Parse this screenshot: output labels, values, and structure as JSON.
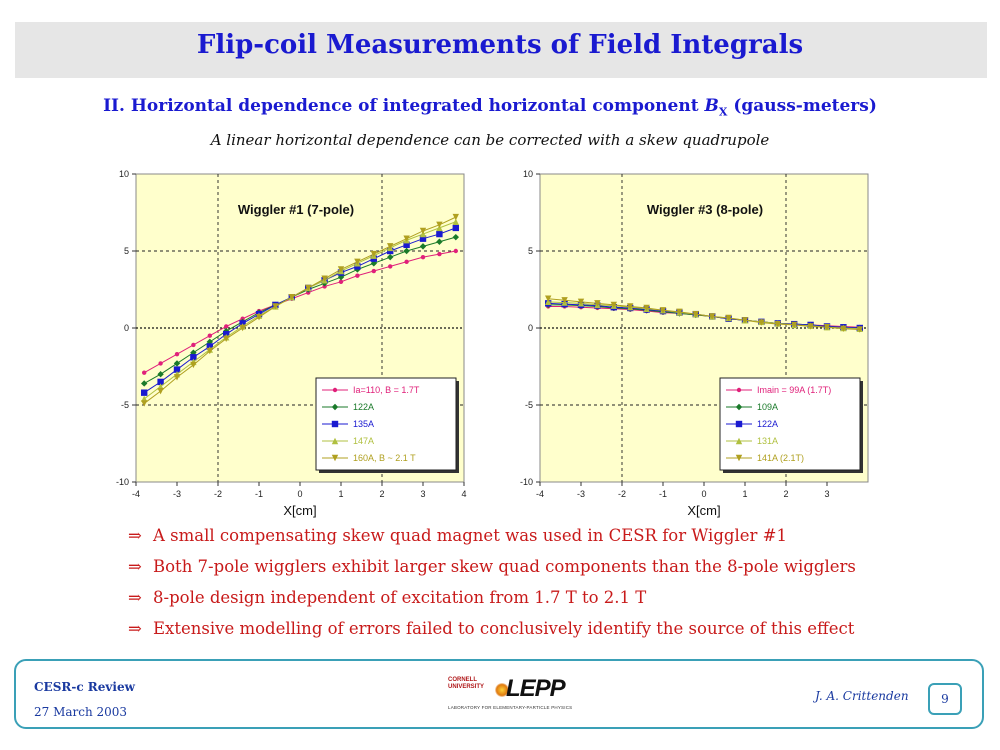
{
  "slide": {
    "title": "Flip-coil Measurements of Field Integrals",
    "subtitle_pre": "II. Horizontal dependence of integrated horizontal component ",
    "subtitle_var": "B",
    "subtitle_sub": "X",
    "subtitle_post": " (gauss-meters)",
    "tagline": "A linear horizontal dependence can be corrected with a skew quadrupole",
    "arrow": "⇒",
    "bullets": [
      "A small compensating skew quad magnet was used in CESR for Wiggler #1",
      "Both 7-pole wigglers exhibit larger skew quad components than the 8-pole wigglers",
      "8-pole design independent of excitation from 1.7 T to 2.1 T",
      "Extensive modelling of errors failed to conclusively identify the source of this effect"
    ]
  },
  "footer": {
    "event": "CESR-c Review",
    "date": "27 March 2003",
    "author": "J. A. Crittenden",
    "page": "9",
    "logo": {
      "top": "CORNELL",
      "top2": "UNIVERSITY",
      "mark": "LEPP",
      "sub": "LABORATORY FOR ELEMENTARY-PARTICLE PHYSICS"
    }
  },
  "chart_data": [
    {
      "type": "line",
      "title": "Wiggler #1 (7-pole)",
      "xlabel": "X[cm]",
      "ylabel": "",
      "xlim": [
        -4,
        4
      ],
      "ylim": [
        -10,
        10
      ],
      "xticks": [
        "-4",
        "-3",
        "-2",
        "-1",
        "0",
        "1",
        "2",
        "3",
        "4"
      ],
      "yticks": [
        "10",
        "5",
        "0",
        "-5",
        "-10"
      ],
      "background": "#ffffcc",
      "legend_position": "bottom-right",
      "x": [
        -3.8,
        -3.4,
        -3.0,
        -2.6,
        -2.2,
        -1.8,
        -1.4,
        -1.0,
        -0.6,
        -0.2,
        0.2,
        0.6,
        1.0,
        1.4,
        1.8,
        2.2,
        2.6,
        3.0,
        3.4,
        3.8
      ],
      "series": [
        {
          "name": "Ia=110, B = 1.7T",
          "color": "#e0207a",
          "marker": "circle",
          "values": [
            -2.9,
            -2.3,
            -1.7,
            -1.1,
            -0.5,
            0.1,
            0.6,
            1.1,
            1.5,
            1.9,
            2.3,
            2.7,
            3.0,
            3.4,
            3.7,
            4.0,
            4.3,
            4.6,
            4.8,
            5.0
          ]
        },
        {
          "name": "122A",
          "color": "#1a7a2a",
          "marker": "diamond",
          "values": [
            -3.6,
            -3.0,
            -2.3,
            -1.6,
            -0.9,
            -0.2,
            0.4,
            1.0,
            1.5,
            2.0,
            2.5,
            2.9,
            3.3,
            3.8,
            4.2,
            4.6,
            5.0,
            5.3,
            5.6,
            5.9
          ]
        },
        {
          "name": "135A",
          "color": "#1a1ad0",
          "marker": "square",
          "values": [
            -4.2,
            -3.5,
            -2.7,
            -1.9,
            -1.2,
            -0.4,
            0.3,
            0.9,
            1.5,
            2.0,
            2.6,
            3.1,
            3.6,
            4.0,
            4.5,
            5.0,
            5.4,
            5.8,
            6.1,
            6.5
          ]
        },
        {
          "name": "147A",
          "color": "#b0c040",
          "marker": "triangle",
          "values": [
            -4.6,
            -3.8,
            -3.0,
            -2.2,
            -1.4,
            -0.6,
            0.1,
            0.8,
            1.4,
            2.0,
            2.6,
            3.1,
            3.7,
            4.2,
            4.7,
            5.2,
            5.7,
            6.1,
            6.5,
            6.9
          ]
        },
        {
          "name": "160A, B ~ 2.1 T",
          "color": "#b0a020",
          "marker": "triangle-down",
          "values": [
            -4.9,
            -4.1,
            -3.2,
            -2.4,
            -1.5,
            -0.7,
            0.0,
            0.7,
            1.4,
            2.0,
            2.6,
            3.2,
            3.8,
            4.3,
            4.8,
            5.3,
            5.8,
            6.3,
            6.7,
            7.2
          ]
        }
      ]
    },
    {
      "type": "line",
      "title": "Wiggler #3 (8-pole)",
      "xlabel": "X[cm]",
      "ylabel": "",
      "xlim": [
        -4,
        4
      ],
      "ylim": [
        -10,
        10
      ],
      "xticks": [
        "-4",
        "-3",
        "-2",
        "-1",
        "0",
        "1",
        "2",
        "3"
      ],
      "yticks": [
        "10",
        "5",
        "0",
        "-5",
        "-10"
      ],
      "background": "#ffffcc",
      "legend_position": "bottom-right",
      "x": [
        -3.8,
        -3.4,
        -3.0,
        -2.6,
        -2.2,
        -1.8,
        -1.4,
        -1.0,
        -0.6,
        -0.2,
        0.2,
        0.6,
        1.0,
        1.4,
        1.8,
        2.2,
        2.6,
        3.0,
        3.4,
        3.8
      ],
      "series": [
        {
          "name": "Imain = 99A (1.7T)",
          "color": "#e0207a",
          "marker": "circle",
          "values": [
            1.4,
            1.4,
            1.35,
            1.3,
            1.25,
            1.2,
            1.1,
            1.0,
            0.95,
            0.85,
            0.75,
            0.6,
            0.5,
            0.4,
            0.3,
            0.25,
            0.2,
            0.15,
            0.1,
            0.05
          ]
        },
        {
          "name": "109A",
          "color": "#1a7a2a",
          "marker": "diamond",
          "values": [
            1.5,
            1.5,
            1.45,
            1.4,
            1.3,
            1.25,
            1.15,
            1.05,
            0.95,
            0.85,
            0.75,
            0.6,
            0.5,
            0.4,
            0.3,
            0.25,
            0.2,
            0.1,
            0.05,
            0.0
          ]
        },
        {
          "name": "122A",
          "color": "#1a1ad0",
          "marker": "square",
          "values": [
            1.6,
            1.55,
            1.5,
            1.45,
            1.35,
            1.3,
            1.2,
            1.1,
            1.0,
            0.9,
            0.75,
            0.6,
            0.5,
            0.4,
            0.3,
            0.25,
            0.2,
            0.1,
            0.05,
            0.0
          ]
        },
        {
          "name": "131A",
          "color": "#b0c040",
          "marker": "triangle",
          "values": [
            1.7,
            1.65,
            1.6,
            1.5,
            1.45,
            1.35,
            1.25,
            1.15,
            1.0,
            0.9,
            0.75,
            0.65,
            0.5,
            0.4,
            0.3,
            0.2,
            0.15,
            0.05,
            0.0,
            -0.05
          ]
        },
        {
          "name": "141A (2.1T)",
          "color": "#b0a020",
          "marker": "triangle-down",
          "values": [
            1.9,
            1.8,
            1.7,
            1.6,
            1.5,
            1.4,
            1.3,
            1.15,
            1.05,
            0.9,
            0.75,
            0.65,
            0.5,
            0.35,
            0.25,
            0.2,
            0.1,
            0.05,
            -0.05,
            -0.1
          ]
        }
      ]
    }
  ]
}
